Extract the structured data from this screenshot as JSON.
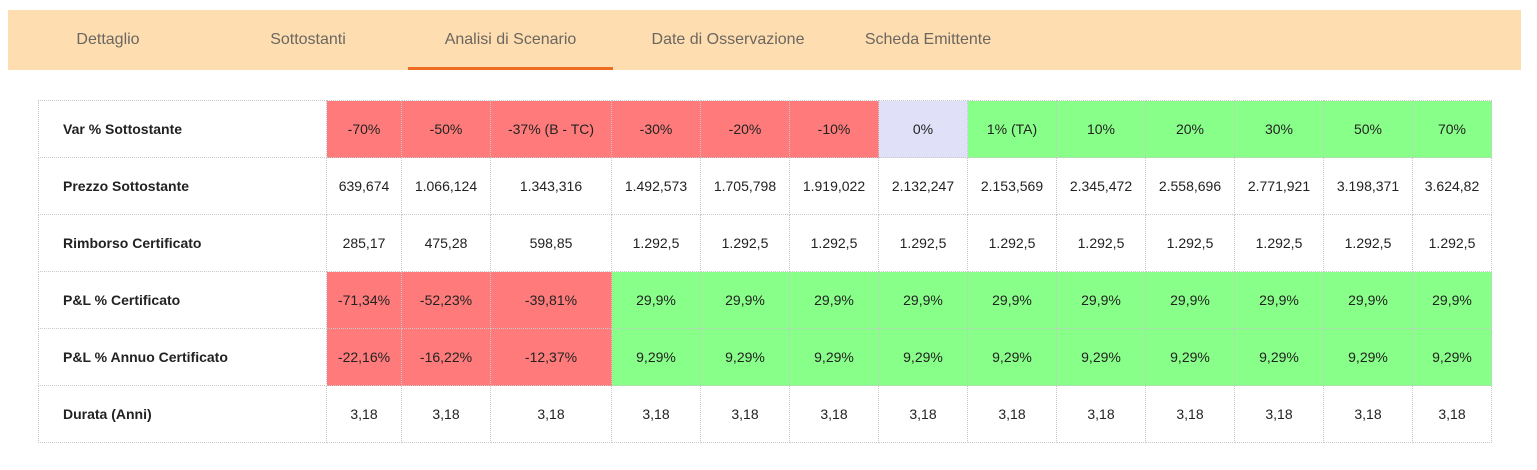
{
  "colors": {
    "tabbar_bg": "#fedeb0",
    "active_underline": "#ef6c23",
    "negative": "#ff7b7b",
    "neutral": "#e0e0f8",
    "positive": "#88ff88",
    "plain": "#ffffff"
  },
  "tabs": [
    {
      "label": "Dettaglio",
      "active": false
    },
    {
      "label": "Sottostanti",
      "active": false
    },
    {
      "label": "Analisi di Scenario",
      "active": true
    },
    {
      "label": "Date di Osservazione",
      "active": false
    },
    {
      "label": "Scheda Emittente",
      "active": false
    }
  ],
  "table": {
    "rows": [
      {
        "label": "Var % Sottostante",
        "cells": [
          "-70%",
          "-50%",
          "-37% (B - TC)",
          "-30%",
          "-20%",
          "-10%",
          "0%",
          "1% (TA)",
          "10%",
          "20%",
          "30%",
          "50%",
          "70%"
        ],
        "status": [
          "negative",
          "negative",
          "negative",
          "negative",
          "negative",
          "negative",
          "neutral",
          "positive",
          "positive",
          "positive",
          "positive",
          "positive",
          "positive"
        ]
      },
      {
        "label": "Prezzo Sottostante",
        "cells": [
          "639,674",
          "1.066,124",
          "1.343,316",
          "1.492,573",
          "1.705,798",
          "1.919,022",
          "2.132,247",
          "2.153,569",
          "2.345,472",
          "2.558,696",
          "2.771,921",
          "3.198,371",
          "3.624,82"
        ],
        "status": [
          "plain",
          "plain",
          "plain",
          "plain",
          "plain",
          "plain",
          "plain",
          "plain",
          "plain",
          "plain",
          "plain",
          "plain",
          "plain"
        ]
      },
      {
        "label": "Rimborso Certificato",
        "cells": [
          "285,17",
          "475,28",
          "598,85",
          "1.292,5",
          "1.292,5",
          "1.292,5",
          "1.292,5",
          "1.292,5",
          "1.292,5",
          "1.292,5",
          "1.292,5",
          "1.292,5",
          "1.292,5"
        ],
        "status": [
          "plain",
          "plain",
          "plain",
          "plain",
          "plain",
          "plain",
          "plain",
          "plain",
          "plain",
          "plain",
          "plain",
          "plain",
          "plain"
        ]
      },
      {
        "label": "P&L % Certificato",
        "cells": [
          "-71,34%",
          "-52,23%",
          "-39,81%",
          "29,9%",
          "29,9%",
          "29,9%",
          "29,9%",
          "29,9%",
          "29,9%",
          "29,9%",
          "29,9%",
          "29,9%",
          "29,9%"
        ],
        "status": [
          "negative",
          "negative",
          "negative",
          "positive",
          "positive",
          "positive",
          "positive",
          "positive",
          "positive",
          "positive",
          "positive",
          "positive",
          "positive"
        ]
      },
      {
        "label": "P&L % Annuo Certificato",
        "cells": [
          "-22,16%",
          "-16,22%",
          "-12,37%",
          "9,29%",
          "9,29%",
          "9,29%",
          "9,29%",
          "9,29%",
          "9,29%",
          "9,29%",
          "9,29%",
          "9,29%",
          "9,29%"
        ],
        "status": [
          "negative",
          "negative",
          "negative",
          "positive",
          "positive",
          "positive",
          "positive",
          "positive",
          "positive",
          "positive",
          "positive",
          "positive",
          "positive"
        ]
      },
      {
        "label": "Durata (Anni)",
        "cells": [
          "3,18",
          "3,18",
          "3,18",
          "3,18",
          "3,18",
          "3,18",
          "3,18",
          "3,18",
          "3,18",
          "3,18",
          "3,18",
          "3,18",
          "3,18"
        ],
        "status": [
          "plain",
          "plain",
          "plain",
          "plain",
          "plain",
          "plain",
          "plain",
          "plain",
          "plain",
          "plain",
          "plain",
          "plain",
          "plain"
        ]
      }
    ]
  }
}
